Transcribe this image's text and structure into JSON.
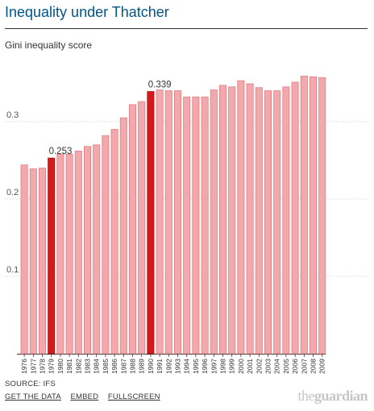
{
  "header": {
    "title": "Inequality under Thatcher"
  },
  "chart_data": {
    "type": "bar",
    "title": "Inequality under Thatcher",
    "ylabel": "Gini inequality score",
    "ylim": [
      0,
      0.36
    ],
    "yticks": [
      "0.1",
      "0.2",
      "0.3"
    ],
    "grid": true,
    "categories": [
      "1976",
      "1977",
      "1978",
      "1979",
      "1980",
      "1981",
      "1982",
      "1983",
      "1984",
      "1985",
      "1986",
      "1987",
      "1988",
      "1989",
      "1990",
      "1991",
      "1992",
      "1993",
      "1994",
      "1995",
      "1996",
      "1997",
      "1998",
      "1999",
      "2000",
      "2001",
      "2002",
      "2003",
      "2004",
      "2005",
      "2006",
      "2007",
      "2008",
      "2009"
    ],
    "values": [
      0.244,
      0.239,
      0.24,
      0.253,
      0.258,
      0.258,
      0.262,
      0.268,
      0.27,
      0.282,
      0.29,
      0.305,
      0.322,
      0.326,
      0.339,
      0.341,
      0.34,
      0.34,
      0.332,
      0.332,
      0.332,
      0.341,
      0.347,
      0.345,
      0.353,
      0.349,
      0.344,
      0.34,
      0.34,
      0.345,
      0.351,
      0.359,
      0.358,
      0.357
    ],
    "highlighted": [
      "1979",
      "1990"
    ],
    "annotations": [
      {
        "category": "1979",
        "label": "0.253"
      },
      {
        "category": "1990",
        "label": "0.339"
      }
    ],
    "colors": {
      "bar": "#f2a9ac",
      "bar_edge": "#e07c82",
      "highlight": "#d7191c",
      "highlight_edge": "#a50f15",
      "grid": "#d0d0d0"
    }
  },
  "footer": {
    "source": "SOURCE: IFS",
    "links": [
      "GET THE DATA",
      "EMBED",
      "FULLSCREEN"
    ],
    "logo_the": "the",
    "logo_name": "guardian"
  }
}
